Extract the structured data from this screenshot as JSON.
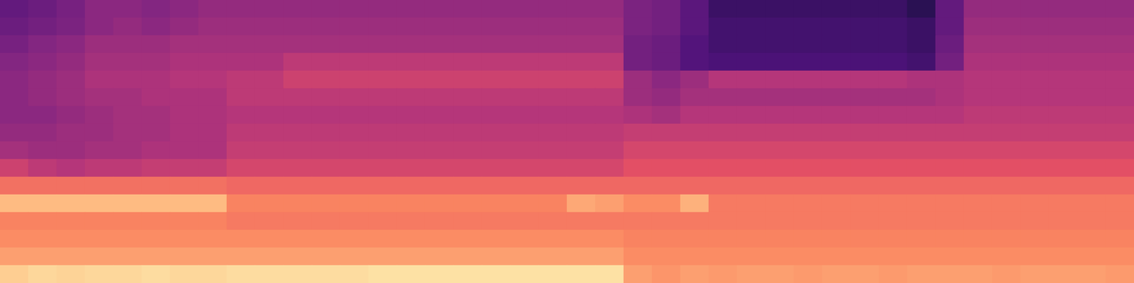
{
  "chart_data": {
    "type": "heatmap",
    "color": "magma",
    "tick_labels": false,
    "zlim": [
      0,
      100
    ],
    "cells": [
      [
        30,
        32,
        35,
        40,
        40,
        38,
        40,
        42,
        42,
        42,
        42,
        42,
        42,
        42,
        42,
        42,
        42,
        42,
        42,
        42,
        42,
        42,
        36,
        34,
        28,
        20,
        20,
        20,
        20,
        20,
        20,
        20,
        16,
        30,
        42,
        42,
        42,
        42,
        42,
        42
      ],
      [
        32,
        34,
        36,
        40,
        42,
        40,
        42,
        44,
        44,
        44,
        44,
        44,
        44,
        44,
        44,
        44,
        44,
        44,
        44,
        44,
        44,
        44,
        36,
        34,
        28,
        22,
        22,
        22,
        22,
        22,
        22,
        22,
        20,
        30,
        44,
        44,
        44,
        44,
        44,
        44
      ],
      [
        35,
        38,
        40,
        44,
        44,
        44,
        46,
        46,
        46,
        46,
        46,
        46,
        46,
        46,
        46,
        46,
        46,
        46,
        46,
        46,
        46,
        46,
        34,
        32,
        26,
        22,
        22,
        22,
        22,
        22,
        22,
        22,
        20,
        32,
        46,
        46,
        46,
        46,
        46,
        46
      ],
      [
        38,
        40,
        42,
        46,
        46,
        46,
        48,
        48,
        48,
        48,
        52,
        52,
        52,
        52,
        52,
        52,
        52,
        52,
        52,
        52,
        52,
        52,
        34,
        32,
        26,
        24,
        24,
        24,
        24,
        24,
        24,
        24,
        22,
        34,
        48,
        48,
        48,
        48,
        48,
        48
      ],
      [
        40,
        42,
        44,
        48,
        48,
        48,
        50,
        50,
        52,
        52,
        56,
        56,
        56,
        56,
        56,
        56,
        56,
        56,
        56,
        56,
        56,
        56,
        44,
        40,
        44,
        50,
        50,
        50,
        50,
        50,
        50,
        50,
        48,
        48,
        50,
        50,
        50,
        50,
        50,
        50
      ],
      [
        40,
        42,
        44,
        46,
        46,
        48,
        48,
        48,
        52,
        52,
        52,
        52,
        52,
        52,
        52,
        52,
        52,
        52,
        52,
        52,
        52,
        52,
        44,
        42,
        46,
        46,
        46,
        46,
        46,
        46,
        46,
        46,
        46,
        48,
        50,
        50,
        50,
        50,
        50,
        50
      ],
      [
        40,
        40,
        42,
        44,
        46,
        46,
        48,
        48,
        50,
        50,
        50,
        50,
        50,
        50,
        50,
        50,
        50,
        50,
        50,
        50,
        50,
        50,
        48,
        46,
        50,
        50,
        50,
        50,
        50,
        50,
        50,
        50,
        50,
        50,
        52,
        52,
        52,
        52,
        52,
        52
      ],
      [
        42,
        42,
        44,
        44,
        46,
        46,
        48,
        48,
        52,
        52,
        52,
        52,
        52,
        52,
        52,
        52,
        52,
        52,
        52,
        52,
        52,
        52,
        54,
        54,
        54,
        54,
        54,
        54,
        54,
        54,
        54,
        54,
        54,
        54,
        54,
        54,
        54,
        54,
        54,
        54
      ],
      [
        46,
        44,
        44,
        46,
        46,
        48,
        48,
        48,
        54,
        54,
        54,
        54,
        54,
        54,
        54,
        54,
        54,
        54,
        54,
        54,
        54,
        54,
        58,
        58,
        58,
        58,
        58,
        58,
        58,
        58,
        58,
        58,
        58,
        58,
        58,
        58,
        58,
        58,
        58,
        58
      ],
      [
        56,
        52,
        50,
        52,
        52,
        54,
        54,
        54,
        58,
        58,
        58,
        58,
        58,
        58,
        58,
        58,
        58,
        58,
        58,
        58,
        58,
        58,
        62,
        62,
        62,
        62,
        62,
        62,
        62,
        62,
        62,
        62,
        62,
        62,
        62,
        62,
        62,
        62,
        62,
        62
      ],
      [
        70,
        70,
        70,
        70,
        70,
        70,
        70,
        70,
        68,
        68,
        68,
        68,
        68,
        68,
        68,
        68,
        68,
        68,
        68,
        68,
        68,
        68,
        68,
        68,
        68,
        68,
        68,
        68,
        68,
        68,
        68,
        68,
        68,
        68,
        68,
        68,
        68,
        68,
        68,
        68
      ],
      [
        86,
        86,
        86,
        86,
        86,
        86,
        86,
        86,
        74,
        74,
        74,
        74,
        74,
        74,
        74,
        74,
        74,
        74,
        74,
        74,
        82,
        80,
        76,
        76,
        84,
        72,
        72,
        72,
        72,
        72,
        72,
        72,
        72,
        72,
        72,
        72,
        72,
        72,
        72,
        72
      ],
      [
        74,
        74,
        74,
        74,
        74,
        74,
        74,
        74,
        72,
        72,
        72,
        72,
        72,
        72,
        72,
        72,
        72,
        72,
        72,
        72,
        72,
        72,
        72,
        72,
        72,
        72,
        72,
        72,
        72,
        72,
        72,
        72,
        72,
        72,
        72,
        72,
        72,
        72,
        72,
        72
      ],
      [
        76,
        76,
        76,
        76,
        76,
        76,
        76,
        76,
        76,
        76,
        76,
        76,
        76,
        76,
        76,
        76,
        76,
        76,
        76,
        76,
        76,
        76,
        74,
        74,
        74,
        74,
        74,
        74,
        74,
        74,
        74,
        74,
        74,
        74,
        74,
        74,
        74,
        74,
        74,
        74
      ],
      [
        80,
        80,
        80,
        80,
        80,
        80,
        80,
        80,
        80,
        80,
        80,
        80,
        80,
        80,
        80,
        80,
        80,
        80,
        80,
        80,
        80,
        80,
        76,
        76,
        76,
        76,
        76,
        76,
        76,
        76,
        76,
        76,
        76,
        76,
        76,
        76,
        76,
        76,
        76,
        76
      ],
      [
        90,
        92,
        91,
        92,
        92,
        93,
        92,
        92,
        93,
        93,
        93,
        93,
        93,
        94,
        94,
        94,
        94,
        94,
        94,
        94,
        94,
        94,
        80,
        78,
        80,
        79,
        80,
        80,
        79,
        80,
        80,
        79,
        80,
        80,
        80,
        79,
        80,
        80,
        80,
        79
      ]
    ]
  }
}
